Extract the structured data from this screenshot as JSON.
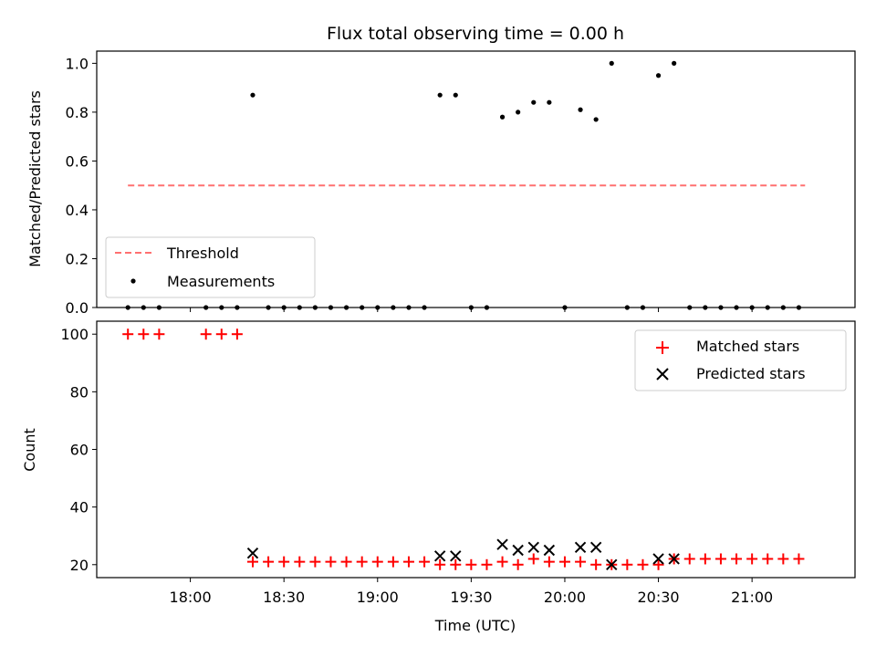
{
  "chart_data": [
    {
      "type": "scatter",
      "title": "Flux total observing time = 0.00 h",
      "xlabel": "",
      "ylabel": "Matched/Predicted stars",
      "xlim": [
        "17:30",
        "21:33"
      ],
      "ylim": [
        0,
        1.05
      ],
      "yticks": [
        "0.0",
        "0.2",
        "0.4",
        "0.6",
        "0.8",
        "1.0"
      ],
      "legend_position": "lower-left",
      "threshold": {
        "name": "Threshold",
        "value": 0.5,
        "x_start": "17:40",
        "x_end": "21:17",
        "color": "#ff7070"
      },
      "series": [
        {
          "name": "Measurements",
          "color": "#000000",
          "x": [
            "17:40",
            "17:45",
            "17:50",
            "17:55",
            "18:00",
            "18:05",
            "18:10",
            "18:15",
            "18:20",
            "18:25",
            "18:30",
            "18:35",
            "18:40",
            "18:45",
            "18:50",
            "18:55",
            "19:00",
            "19:05",
            "19:10",
            "19:15",
            "19:20",
            "19:25",
            "19:30",
            "19:35",
            "19:40",
            "19:45",
            "19:50",
            "19:55",
            "20:00",
            "20:05",
            "20:10",
            "20:15",
            "20:20",
            "20:25",
            "20:30",
            "20:35",
            "20:40",
            "20:45",
            "20:50",
            "20:55",
            "21:00",
            "21:05",
            "21:10",
            "21:15"
          ],
          "y": [
            0,
            0,
            0,
            null,
            null,
            0,
            0,
            0,
            0.87,
            0,
            0,
            0,
            0,
            0,
            0,
            0,
            0,
            0,
            0,
            0,
            0.87,
            0.87,
            0,
            0,
            0.78,
            0.8,
            0.84,
            0.84,
            0,
            0.81,
            0.77,
            1.0,
            0,
            0,
            0.95,
            1.0,
            0,
            0,
            0,
            0,
            0,
            0,
            0,
            0
          ]
        }
      ]
    },
    {
      "type": "scatter",
      "title": "",
      "xlabel": "Time (UTC)",
      "ylabel": "Count",
      "xlim": [
        "17:30",
        "21:33"
      ],
      "ylim": [
        15.5,
        104.5
      ],
      "yticks": [
        "20",
        "40",
        "60",
        "80",
        "100"
      ],
      "xticks": [
        "18:00",
        "18:30",
        "19:00",
        "19:30",
        "20:00",
        "20:30",
        "21:00"
      ],
      "legend_position": "upper-right",
      "series": [
        {
          "name": "Matched stars",
          "marker": "plus",
          "color": "#ff0000",
          "x": [
            "17:40",
            "17:45",
            "17:50",
            "17:55",
            "18:00",
            "18:05",
            "18:10",
            "18:15",
            "18:20",
            "18:25",
            "18:30",
            "18:35",
            "18:40",
            "18:45",
            "18:50",
            "18:55",
            "19:00",
            "19:05",
            "19:10",
            "19:15",
            "19:20",
            "19:25",
            "19:30",
            "19:35",
            "19:40",
            "19:45",
            "19:50",
            "19:55",
            "20:00",
            "20:05",
            "20:10",
            "20:15",
            "20:20",
            "20:25",
            "20:30",
            "20:35",
            "20:40",
            "20:45",
            "20:50",
            "20:55",
            "21:00",
            "21:05",
            "21:10",
            "21:15"
          ],
          "y": [
            100,
            100,
            100,
            null,
            null,
            100,
            100,
            100,
            21,
            21,
            21,
            21,
            21,
            21,
            21,
            21,
            21,
            21,
            21,
            21,
            20,
            20,
            20,
            20,
            21,
            20,
            22,
            21,
            21,
            21,
            20,
            20,
            20,
            20,
            20,
            22,
            22,
            22,
            22,
            22,
            22,
            22,
            22,
            22
          ]
        },
        {
          "name": "Predicted stars",
          "marker": "x",
          "color": "#000000",
          "x": [
            "18:20",
            "19:20",
            "19:25",
            "19:40",
            "19:45",
            "19:50",
            "19:55",
            "20:05",
            "20:10",
            "20:15",
            "20:30",
            "20:35"
          ],
          "y": [
            24,
            23,
            23,
            27,
            25,
            26,
            25,
            26,
            26,
            20,
            22,
            22
          ]
        }
      ]
    }
  ]
}
